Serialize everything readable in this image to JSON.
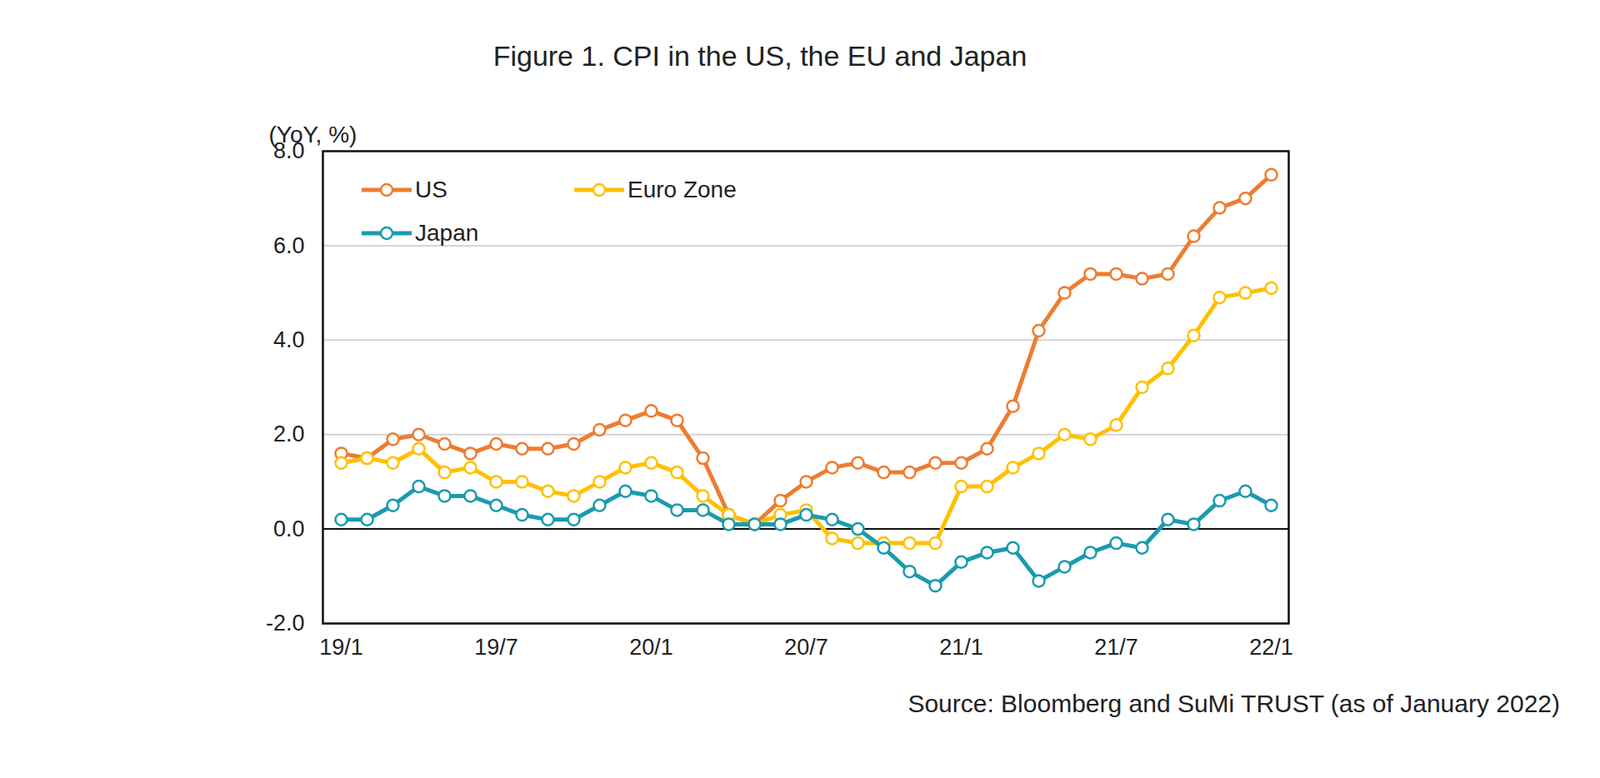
{
  "chart_data": {
    "type": "line",
    "title": "Figure 1. CPI in the US, the EU and Japan",
    "y_label": "(YoY, %)",
    "source": "Source: Bloomberg and SuMi TRUST (as of January 2022)",
    "categories": [
      "19/1",
      null,
      null,
      null,
      null,
      null,
      "19/7",
      null,
      null,
      null,
      null,
      null,
      "20/1",
      null,
      null,
      null,
      null,
      null,
      "20/7",
      null,
      null,
      null,
      null,
      null,
      "21/1",
      null,
      null,
      null,
      null,
      null,
      "21/7",
      null,
      null,
      null,
      null,
      null,
      "22/1"
    ],
    "series": [
      {
        "name": "US",
        "color": "#ED7D31",
        "marker": "circle",
        "values": [
          1.6,
          1.5,
          1.9,
          2.0,
          1.8,
          1.6,
          1.8,
          1.7,
          1.7,
          1.8,
          2.1,
          2.3,
          2.5,
          2.3,
          1.5,
          0.3,
          0.1,
          0.6,
          1.0,
          1.3,
          1.4,
          1.2,
          1.2,
          1.4,
          1.4,
          1.7,
          2.6,
          4.2,
          5.0,
          5.4,
          5.4,
          5.3,
          5.4,
          6.2,
          6.8,
          7.0,
          7.5
        ]
      },
      {
        "name": "Euro Zone",
        "color": "#FFC000",
        "marker": "circle",
        "values": [
          1.4,
          1.5,
          1.4,
          1.7,
          1.2,
          1.3,
          1.0,
          1.0,
          0.8,
          0.7,
          1.0,
          1.3,
          1.4,
          1.2,
          0.7,
          0.3,
          0.1,
          0.3,
          0.4,
          -0.2,
          -0.3,
          -0.3,
          -0.3,
          -0.3,
          0.9,
          0.9,
          1.3,
          1.6,
          2.0,
          1.9,
          2.2,
          3.0,
          3.4,
          4.1,
          4.9,
          5.0,
          5.1
        ]
      },
      {
        "name": "Japan",
        "color": "#1A9BAE",
        "marker": "circle",
        "values": [
          0.2,
          0.2,
          0.5,
          0.9,
          0.7,
          0.7,
          0.5,
          0.3,
          0.2,
          0.2,
          0.5,
          0.8,
          0.7,
          0.4,
          0.4,
          0.1,
          0.1,
          0.1,
          0.3,
          0.2,
          0.0,
          -0.4,
          -0.9,
          -1.2,
          -0.7,
          -0.5,
          -0.4,
          -1.1,
          -0.8,
          -0.5,
          -0.3,
          -0.4,
          0.2,
          0.1,
          0.6,
          0.8,
          0.5
        ]
      }
    ],
    "ylim": [
      -2,
      8
    ],
    "yticks": [
      {
        "value": -2,
        "label": "-2.0"
      },
      {
        "value": 0,
        "label": "0.0"
      },
      {
        "value": 2,
        "label": "2.0"
      },
      {
        "value": 4,
        "label": "4.0"
      },
      {
        "value": 6,
        "label": "6.0"
      },
      {
        "value": 8,
        "label": "8.0"
      }
    ],
    "grid": true,
    "legend": "top-left"
  }
}
